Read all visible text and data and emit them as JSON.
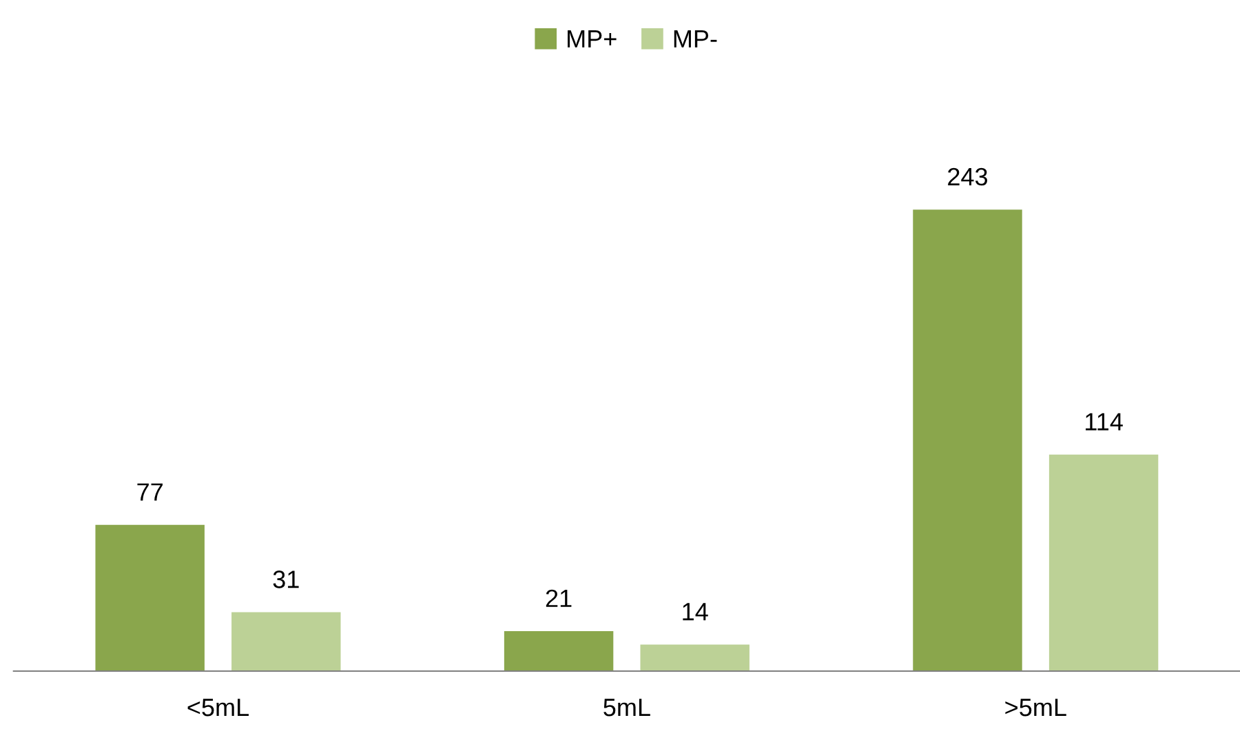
{
  "chart_data": {
    "type": "bar",
    "categories": [
      "<5mL",
      "5mL",
      ">5mL"
    ],
    "series": [
      {
        "name": "MP+",
        "color": "#8aa64c",
        "values": [
          77,
          21,
          243
        ]
      },
      {
        "name": "MP-",
        "color": "#bcd196",
        "values": [
          31,
          14,
          114
        ]
      }
    ],
    "data_labels": true,
    "legend": "top",
    "grid": false
  }
}
